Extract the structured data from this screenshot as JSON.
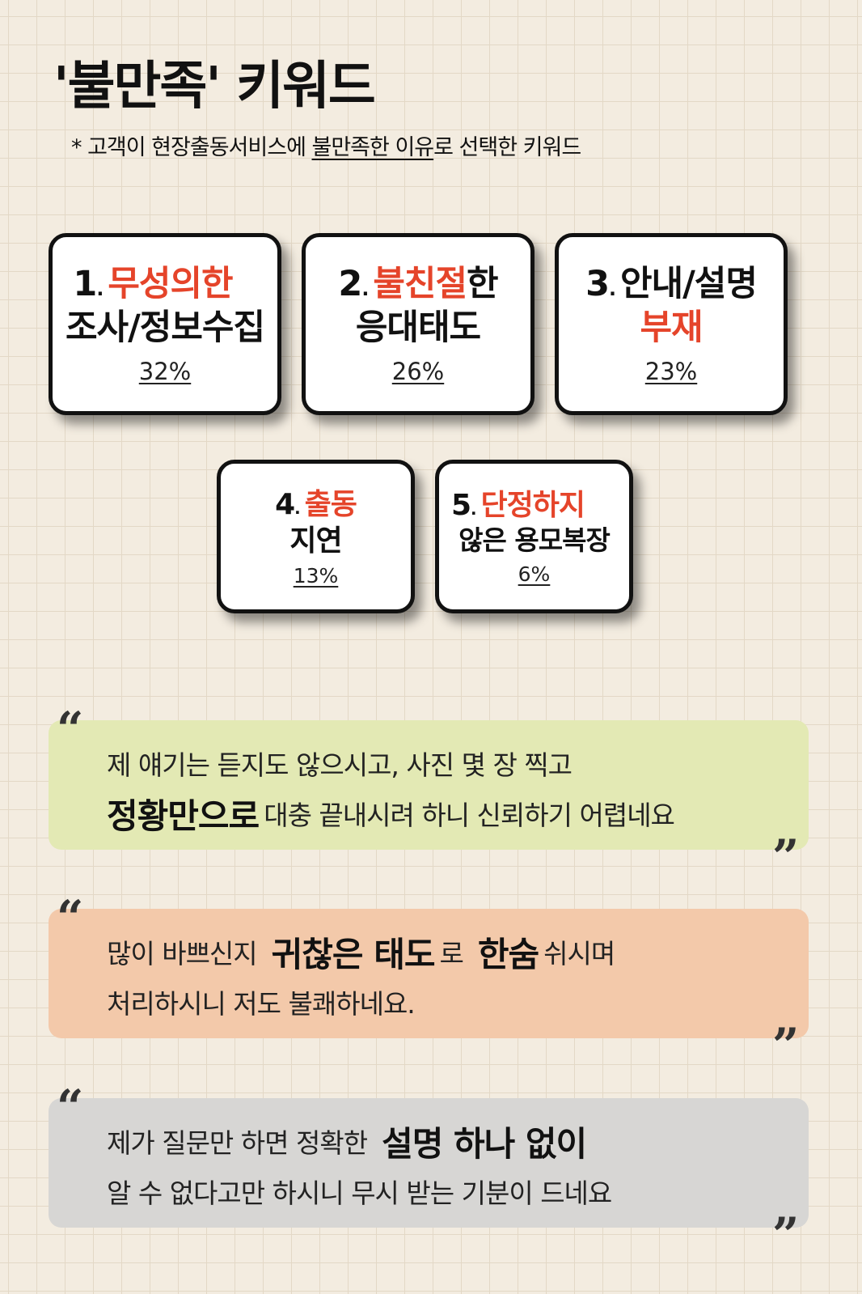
{
  "title": "'불만족' 키워드",
  "subtitle": {
    "prefix": "*  고객이 현장출동서비스에 ",
    "underlined": "불만족한 이유",
    "suffix": "로 선택한 키워드"
  },
  "keywords": [
    {
      "num": "1",
      "l1_red": "무성의한",
      "l1_black": "",
      "l2_black": "조사/정보수집",
      "l2_red": "",
      "percent": "32%"
    },
    {
      "num": "2",
      "l1_red": "불친절",
      "l1_black": "한",
      "l2_black": "응대태도",
      "l2_red": "",
      "percent": "26%"
    },
    {
      "num": "3",
      "l1_red": "",
      "l1_black": "안내/설명",
      "l2_black": "",
      "l2_red": "부재",
      "percent": "23%"
    },
    {
      "num": "4",
      "l1_red": "출동",
      "l1_black": "",
      "l2_black": "지연",
      "l2_red": "",
      "percent": "13%"
    },
    {
      "num": "5",
      "l1_red": "단정하지",
      "l1_black": "",
      "l2_black": "않은 용모복장",
      "l2_red": "",
      "percent": "6%"
    }
  ],
  "quote_marks": {
    "open": "“",
    "close": "”"
  },
  "quotes": [
    {
      "line1": "제 얘기는 듣지도 않으시고, 사진 몇 장 찍고",
      "line2_bold": "정황만으로",
      "line2_rest": "대충 끝내시려 하니 신뢰하기 어렵네요"
    },
    {
      "line1_a": "많이 바쁘신지",
      "line1_bold1": "귀찮은 태도",
      "line1_b": "로",
      "line1_bold2": "한숨",
      "line1_c": "쉬시며",
      "line2": "처리하시니 저도 불쾌하네요."
    },
    {
      "line1_a": "제가 질문만 하면  정확한",
      "line1_bold": "설명 하나 없이",
      "line2": "알 수 없다고만 하시니 무시 받는 기분이 드네요"
    }
  ],
  "colors": {
    "accent": "#e5442a",
    "quote1_bg": "#e3e9b4",
    "quote2_bg": "#f3c9aa",
    "quote3_bg": "#d7d6d4"
  }
}
